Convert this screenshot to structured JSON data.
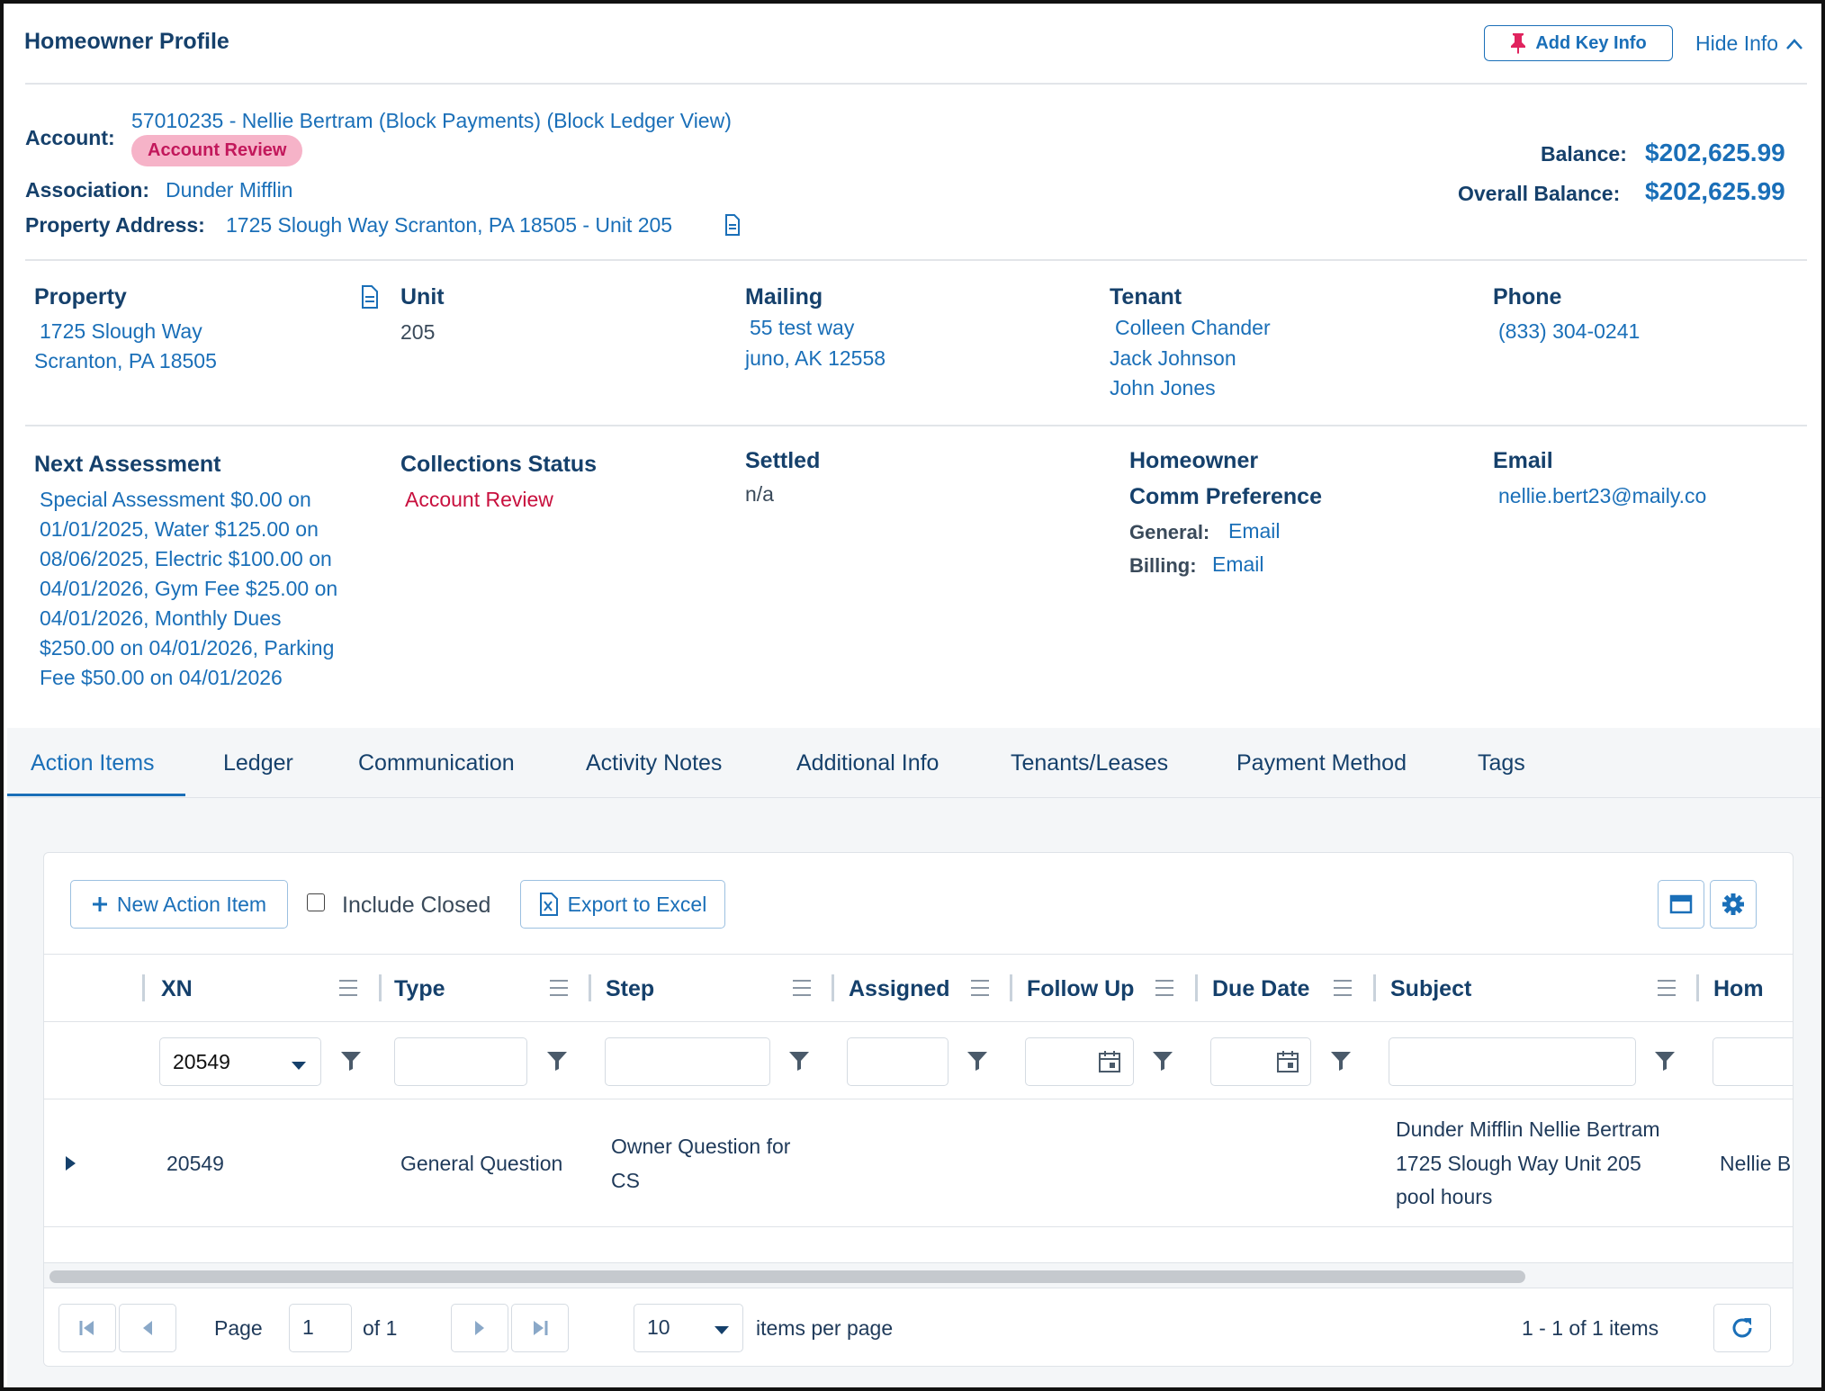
{
  "header": {
    "title": "Homeowner Profile",
    "add_key_info": "Add Key Info",
    "hide_info": "Hide Info"
  },
  "account": {
    "account_label": "Account:",
    "account_value": "57010235 - Nellie Bertram (Block Payments) (Block Ledger View)",
    "badge": "Account Review",
    "association_label": "Association:",
    "association_value": "Dunder Mifflin",
    "address_label": "Property Address:",
    "address_value": "1725 Slough Way Scranton, PA 18505 - Unit 205",
    "balance_label": "Balance:",
    "balance_value": "$202,625.99",
    "overall_label": "Overall Balance:",
    "overall_value": "$202,625.99"
  },
  "details": {
    "property": {
      "label": "Property",
      "line1": "1725 Slough Way",
      "line2": "Scranton, PA 18505"
    },
    "unit": {
      "label": "Unit",
      "value": "205"
    },
    "mailing": {
      "label": "Mailing",
      "line1": "55 test way",
      "line2": "juno, AK 12558"
    },
    "tenant": {
      "label": "Tenant",
      "names": [
        "Colleen Chander",
        "Jack Johnson",
        "John Jones"
      ]
    },
    "phone": {
      "label": "Phone",
      "value": "(833) 304-0241"
    },
    "next_assessment": {
      "label": "Next Assessment",
      "lines": [
        "Special Assessment $0.00 on",
        "01/01/2025, Water $125.00 on",
        "08/06/2025, Electric $100.00 on",
        "04/01/2026, Gym Fee $25.00 on",
        "04/01/2026, Monthly Dues",
        "$250.00 on 04/01/2026, Parking",
        "Fee $50.00 on 04/01/2026"
      ]
    },
    "collections": {
      "label": "Collections Status",
      "value": "Account Review"
    },
    "settled": {
      "label": "Settled",
      "value": "n/a"
    },
    "comm": {
      "label1": "Homeowner",
      "label2": "Comm Preference",
      "general_label": "General:",
      "general_value": "Email",
      "billing_label": "Billing:",
      "billing_value": "Email"
    },
    "email": {
      "label": "Email",
      "value": "nellie.bert23@maily.co"
    }
  },
  "tabs": [
    "Action Items",
    "Ledger",
    "Communication",
    "Activity Notes",
    "Additional Info",
    "Tenants/Leases",
    "Payment Method",
    "Tags"
  ],
  "toolbar": {
    "new_action": "New Action Item",
    "include_closed": "Include Closed",
    "export": "Export to Excel"
  },
  "grid": {
    "columns": [
      "XN",
      "Type",
      "Step",
      "Assigned",
      "Follow Up",
      "Due Date",
      "Subject",
      "Hom"
    ],
    "filter_xn": "20549",
    "rows": [
      {
        "xn": "20549",
        "type": "General Question",
        "step_line1": "Owner Question for",
        "step_line2": "CS",
        "subject_line1": "Dunder Mifflin Nellie Bertram",
        "subject_line2": "1725 Slough Way Unit 205",
        "subject_line3": "pool hours",
        "homeowner": "Nellie B"
      }
    ]
  },
  "pager": {
    "page_label": "Page",
    "page_value": "1",
    "of_label": "of 1",
    "per_page": "10",
    "per_page_label": "items per page",
    "summary": "1 - 1 of 1 items"
  },
  "colors": {
    "accent": "#1a6fb8",
    "navy": "#15406b",
    "badge_bg": "#f6b3c8",
    "badge_text": "#c2185b",
    "alert": "#c8103e"
  }
}
